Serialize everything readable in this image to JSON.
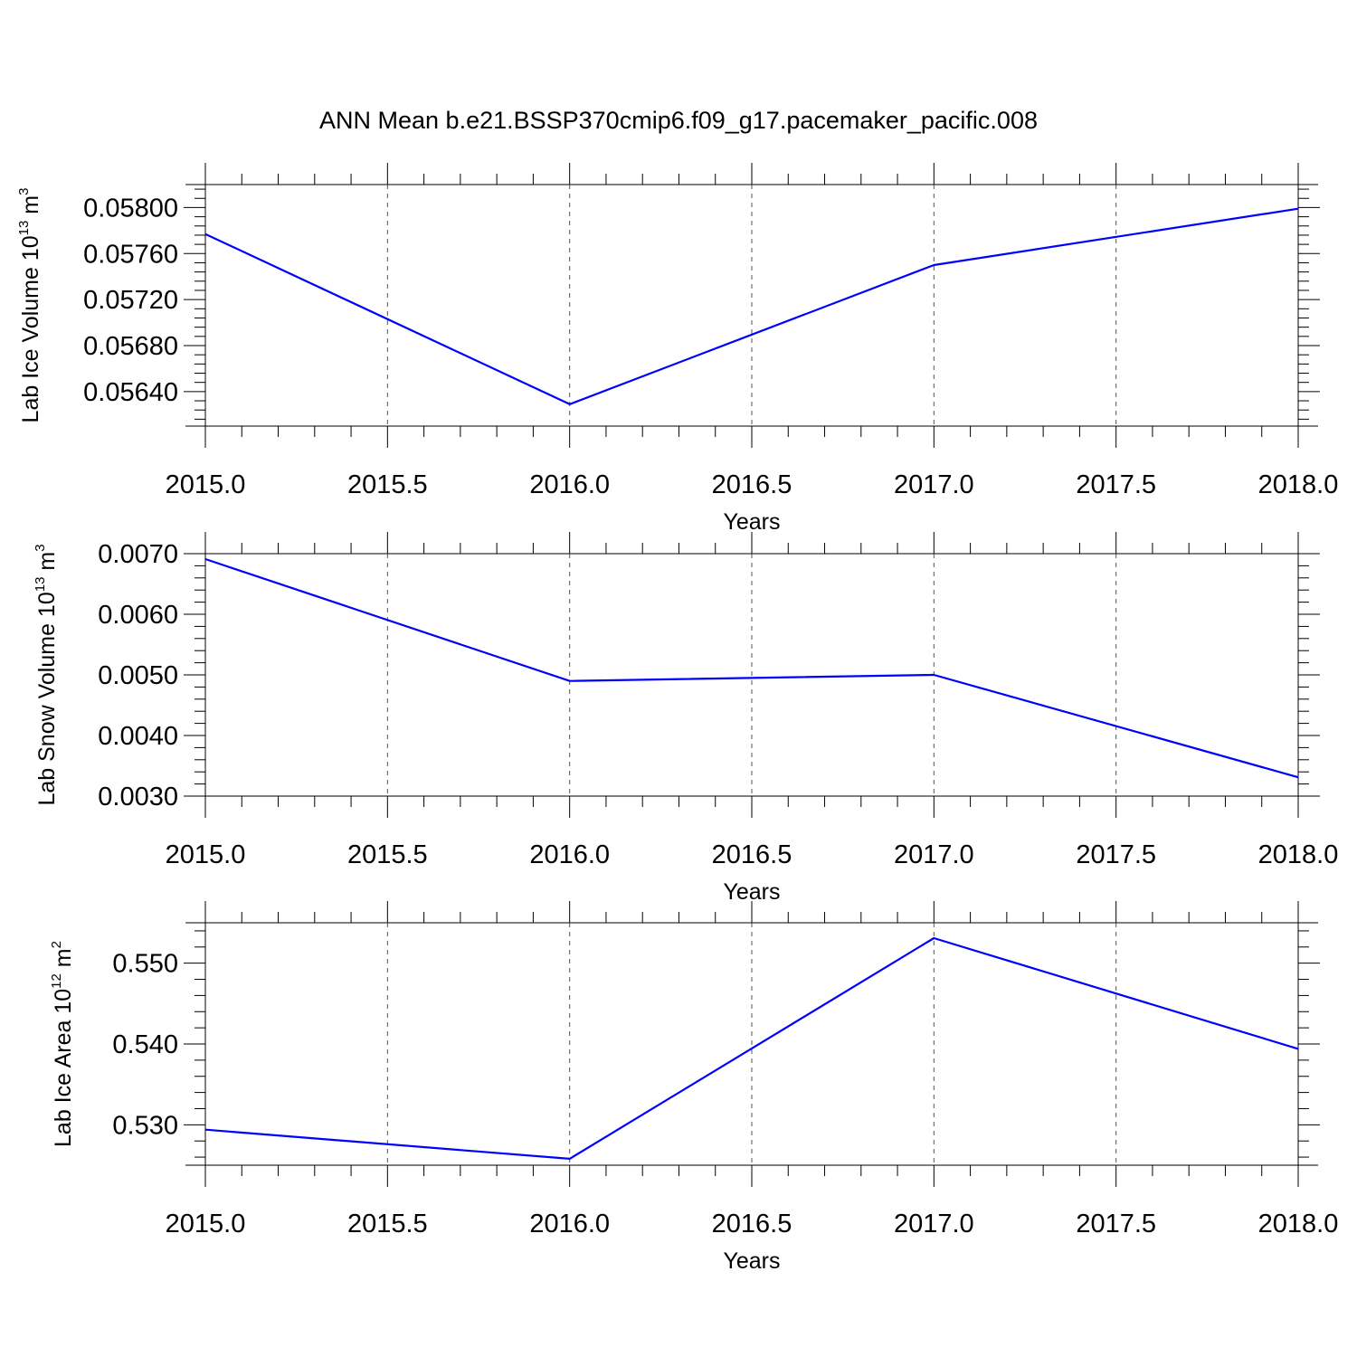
{
  "title": "ANN Mean b.e21.BSSP370cmip6.f09_g17.pacemaker_pacific.008",
  "line_color": "#0000ff",
  "chart_data": [
    {
      "type": "line",
      "title": "",
      "xlabel": "Years",
      "ylabel": {
        "base": "Lab Ice Volume 10",
        "exponent": "13",
        "unit": " m",
        "unit_exponent": "3"
      },
      "xlim": [
        2015.0,
        2018.0
      ],
      "ylim": [
        0.0561,
        0.0582
      ],
      "x_ticks": [
        "2015.0",
        "2015.5",
        "2016.0",
        "2016.5",
        "2017.0",
        "2017.5",
        "2018.0"
      ],
      "y_ticks": [
        "0.05640",
        "0.05680",
        "0.05720",
        "0.05760",
        "0.05800"
      ],
      "grid": "vertical-dashed",
      "x": [
        2015,
        2016,
        2017,
        2018
      ],
      "y": [
        0.05777,
        0.05629,
        0.0575,
        0.05799
      ]
    },
    {
      "type": "line",
      "title": "",
      "xlabel": "Years",
      "ylabel": {
        "base": "Lab Snow Volume 10",
        "exponent": "13",
        "unit": " m",
        "unit_exponent": "3"
      },
      "xlim": [
        2015.0,
        2018.0
      ],
      "ylim": [
        0.003,
        0.007
      ],
      "x_ticks": [
        "2015.0",
        "2015.5",
        "2016.0",
        "2016.5",
        "2017.0",
        "2017.5",
        "2018.0"
      ],
      "y_ticks": [
        "0.0030",
        "0.0040",
        "0.0050",
        "0.0060",
        "0.0070"
      ],
      "grid": "vertical-dashed",
      "x": [
        2015,
        2016,
        2017,
        2018
      ],
      "y": [
        0.00691,
        0.0049,
        0.005,
        0.00331
      ]
    },
    {
      "type": "line",
      "title": "",
      "xlabel": "Years",
      "ylabel": {
        "base": "Lab Ice Area 10",
        "exponent": "12",
        "unit": " m",
        "unit_exponent": "2"
      },
      "xlim": [
        2015.0,
        2018.0
      ],
      "ylim": [
        0.525,
        0.555
      ],
      "x_ticks": [
        "2015.0",
        "2015.5",
        "2016.0",
        "2016.5",
        "2017.0",
        "2017.5",
        "2018.0"
      ],
      "y_ticks": [
        "0.530",
        "0.540",
        "0.550"
      ],
      "grid": "vertical-dashed",
      "x": [
        2015,
        2016,
        2017,
        2018
      ],
      "y": [
        0.5294,
        0.5258,
        0.5531,
        0.5394
      ]
    }
  ]
}
